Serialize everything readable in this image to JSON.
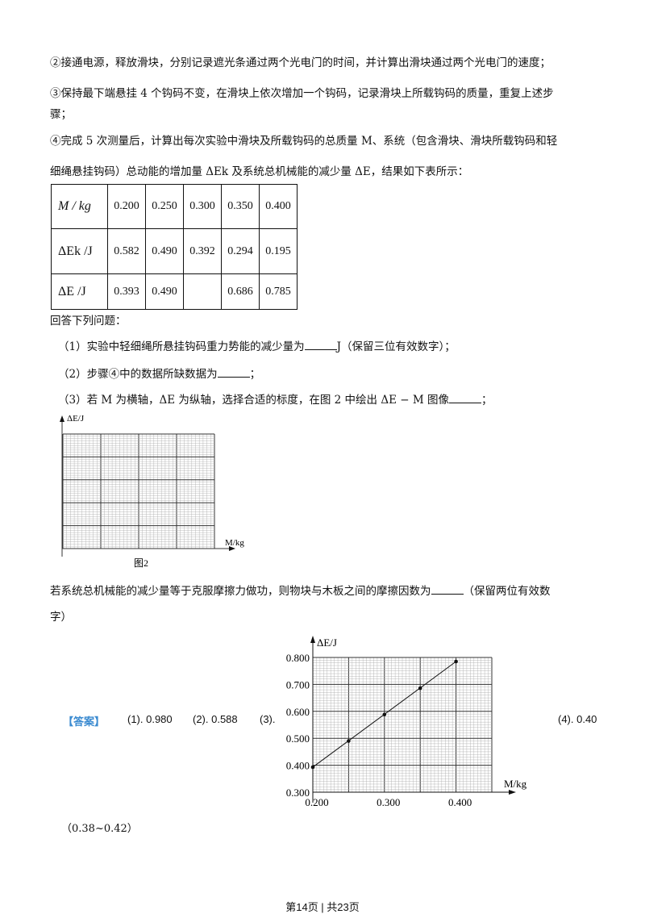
{
  "paragraphs": {
    "step2": "②接通电源，释放滑块，分别记录遮光条通过两个光电门的时间，并计算出滑块通过两个光电门的速度；",
    "step3_a": "③保持最下端悬挂 4 个钩码不变，在滑块上依次增加一个钩码，记录滑块上所载钩码的质量，重复上述步",
    "step3_b": "骤；",
    "step4_a": "④完成 5 次测量后，计算出每次实验中滑块及所载钩码的总质量 M、系统（包含滑块、滑块所载钩码和轻",
    "step4_b": "细绳悬挂钩码）总动能的增加量 ΔEk 及系统总机械能的减少量 ΔE，结果如下表所示："
  },
  "table": {
    "headers": [
      "M / kg",
      "ΔEk /J",
      "ΔE /J"
    ],
    "rows": [
      [
        "0.200",
        "0.250",
        "0.300",
        "0.350",
        "0.400"
      ],
      [
        "0.582",
        "0.490",
        "0.392",
        "0.294",
        "0.195"
      ],
      [
        "0.393",
        "0.490",
        "",
        "0.686",
        "0.785"
      ]
    ]
  },
  "questions": {
    "intro": "回答下列问题：",
    "q1_a": "（1）实验中轻细绳所悬挂钩码重力势能的减少量为",
    "q1_b": "J（保留三位有效数字）；",
    "q2_a": "（2）步骤④中的数据所缺数据为",
    "q2_b": "；",
    "q3_a": "（3）若 M 为横轴，ΔE 为纵轴，选择合适的标度，在图 2 中绘出 ΔE − M 图像",
    "q3_b": "；",
    "q4_a": "若系统总机械能的减少量等于克服摩擦力做功，则物块与木板之间的摩擦因数为",
    "q4_b": "（保留两位有效数",
    "q4_c": "字）"
  },
  "figure2": {
    "ylabel": "ΔE/J",
    "xlabel": "M/kg",
    "caption": "图2"
  },
  "answer": {
    "tag": "【答案】",
    "a1": "(1). 0.980",
    "a2": "(2). 0.588",
    "a3": "(3).",
    "a4": "(4). 0.40",
    "a4_range": "（0.38~0.42）",
    "tag_color": "#3a8ad0"
  },
  "chart_data": {
    "type": "scatter",
    "ylabel": "ΔE/J",
    "xlabel": "M/kg",
    "x_ticks": [
      "0.200",
      "0.300",
      "0.400"
    ],
    "y_ticks": [
      "0.300",
      "0.400",
      "0.500",
      "0.600",
      "0.700",
      "0.800"
    ],
    "xlim": [
      0.2,
      0.45
    ],
    "ylim": [
      0.3,
      0.8
    ],
    "grid": true,
    "fit_line": true,
    "x": [
      0.2,
      0.25,
      0.3,
      0.35,
      0.4
    ],
    "y": [
      0.393,
      0.49,
      0.588,
      0.686,
      0.785
    ]
  },
  "footer": "第14页 | 共23页"
}
